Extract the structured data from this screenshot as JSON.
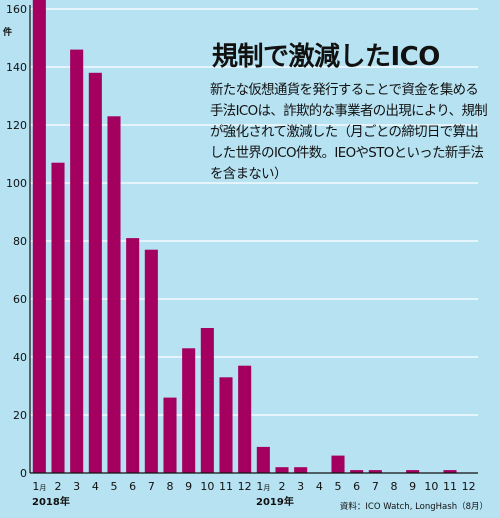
{
  "title": "規制で激減したICO",
  "description": "新たな仮想通貨を発行することで資金を集める手法ICOは、詐欺的な事業者の出現により、規制が強化されて激減した（月ごとの締切日で算出した世界のICO件数。IEOやSTOといった新手法を含まない）",
  "source": "資料：ICO Watch, LongHash（8月）",
  "colors": {
    "background": "#b6e2f2",
    "bar": "#a3005f",
    "grid": "#ffffff",
    "text": "#111111"
  },
  "chart_data": {
    "type": "bar",
    "title": "規制で激減したICO",
    "ylabel": "件",
    "ylim": [
      0,
      160
    ],
    "yticks": [
      0,
      20,
      40,
      60,
      80,
      100,
      120,
      140,
      160
    ],
    "grid": true,
    "x_tick_labels": [
      "1",
      "2",
      "3",
      "4",
      "5",
      "6",
      "7",
      "8",
      "9",
      "10",
      "11",
      "12",
      "1",
      "2",
      "3",
      "4",
      "5",
      "6",
      "7",
      "8",
      "9",
      "10",
      "11",
      "12"
    ],
    "month_suffix": "月",
    "year_labels": [
      {
        "label": "2018年",
        "at_index": 0
      },
      {
        "label": "2019年",
        "at_index": 12
      }
    ],
    "categories": [
      "2018年1月",
      "2018年2月",
      "2018年3月",
      "2018年4月",
      "2018年5月",
      "2018年6月",
      "2018年7月",
      "2018年8月",
      "2018年9月",
      "2018年10月",
      "2018年11月",
      "2018年12月",
      "2019年1月",
      "2019年2月",
      "2019年3月",
      "2019年4月",
      "2019年5月",
      "2019年6月",
      "2019年7月",
      "2019年8月",
      "2019年9月",
      "2019年10月",
      "2019年11月",
      "2019年12月"
    ],
    "values": [
      166,
      107,
      146,
      138,
      123,
      81,
      77,
      26,
      43,
      50,
      33,
      37,
      9,
      2,
      2,
      0,
      6,
      1,
      1,
      0,
      1,
      0,
      1,
      0
    ]
  }
}
